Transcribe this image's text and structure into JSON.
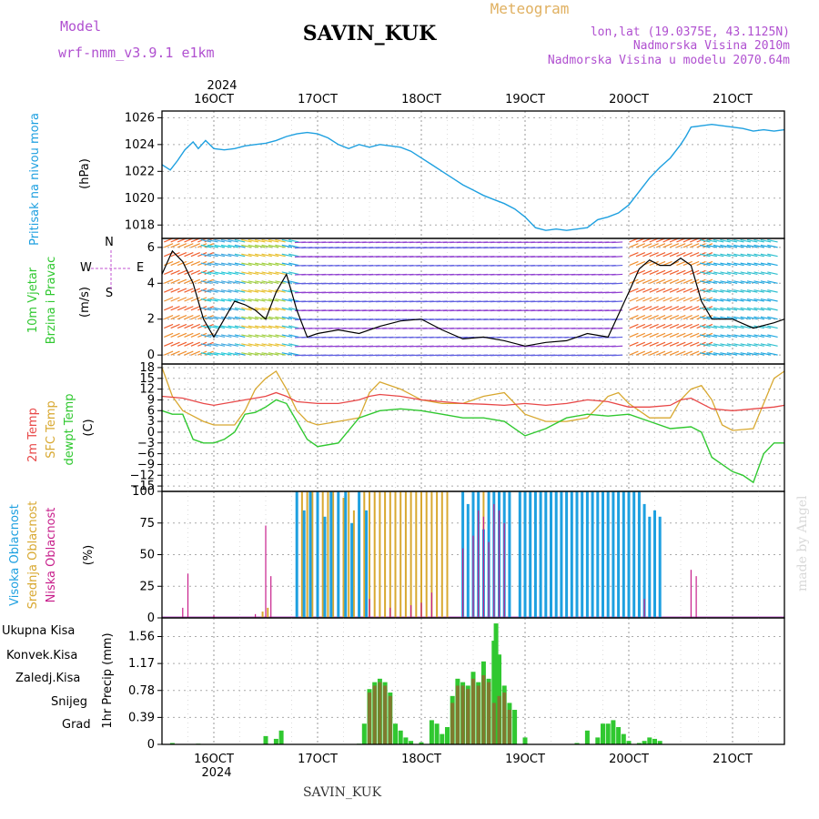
{
  "header": {
    "model_label": "Model",
    "model_name": "wrf-nmm_v3.9.1 e1km",
    "station": "SAVIN_KUK",
    "product": "Meteogram",
    "coords": "lon,lat (19.0375E, 43.1125N)",
    "elevation": "Nadmorska Visina 2010m",
    "model_elevation": "Nadmorska Visina u modelu 2070.64m",
    "footer_station": "SAVIN_KUK",
    "watermark": "made by Angel",
    "year": "2024",
    "day_labels": [
      "16OCT",
      "17OCT",
      "18OCT",
      "19OCT",
      "20OCT",
      "21OCT"
    ]
  },
  "colors": {
    "pressure": "#1ea0e0",
    "t2m": "#e84848",
    "sfc": "#d8a830",
    "dewpt": "#30c830",
    "high_cloud": "#1ea0e0",
    "mid_cloud": "#d8a830",
    "low_cloud": "#c8208c",
    "total_precip": "#30c830",
    "conv_precip": "#e84848",
    "grid_precip": "#d87830",
    "snow": "#5050e0",
    "graupel": "#30c8c8",
    "wind_label": "#30c830",
    "wind_units": "#c050d0"
  },
  "chart_data": [
    {
      "type": "line",
      "panel": "pressure",
      "ylabel_name": "Pritisak na nivou mora",
      "ylabel_unit": "(hPa)",
      "ylim": [
        1017,
        1026.5
      ],
      "yticks": [
        1018,
        1020,
        1022,
        1024,
        1026
      ],
      "xlim_days": [
        15.5,
        21.5
      ],
      "series": [
        {
          "x": [
            15.5,
            15.58,
            15.65,
            15.72,
            15.8,
            15.85,
            15.92,
            16.0,
            16.1,
            16.2,
            16.3,
            16.4,
            16.5,
            16.6,
            16.7,
            16.8,
            16.9,
            17.0,
            17.1,
            17.2,
            17.3,
            17.4,
            17.5,
            17.6,
            17.7,
            17.8,
            17.9,
            18.0,
            18.1,
            18.2,
            18.3,
            18.4,
            18.5,
            18.6,
            18.7,
            18.8,
            18.9,
            19.0,
            19.1,
            19.2,
            19.3,
            19.4,
            19.5,
            19.6,
            19.7,
            19.8,
            19.9,
            20.0,
            20.1,
            20.2,
            20.3,
            20.4,
            20.5,
            20.55,
            20.6,
            20.7,
            20.8,
            20.9,
            21.0,
            21.1,
            21.2,
            21.3,
            21.4,
            21.5
          ],
          "y": [
            1022.5,
            1022.1,
            1022.8,
            1023.6,
            1024.2,
            1023.7,
            1024.3,
            1023.7,
            1023.6,
            1023.7,
            1023.9,
            1024.0,
            1024.1,
            1024.3,
            1024.6,
            1024.8,
            1024.9,
            1024.8,
            1024.5,
            1024.0,
            1023.7,
            1024.0,
            1023.8,
            1024.0,
            1023.9,
            1023.8,
            1023.5,
            1023.0,
            1022.5,
            1022.0,
            1021.5,
            1021.0,
            1020.6,
            1020.2,
            1019.9,
            1019.6,
            1019.2,
            1018.6,
            1017.8,
            1017.6,
            1017.7,
            1017.6,
            1017.7,
            1017.8,
            1018.4,
            1018.6,
            1018.9,
            1019.5,
            1020.5,
            1021.5,
            1022.3,
            1023.0,
            1024.0,
            1024.6,
            1025.3,
            1025.4,
            1025.5,
            1025.4,
            1025.3,
            1025.2,
            1025.0,
            1025.1,
            1025.0,
            1025.1
          ]
        }
      ]
    },
    {
      "type": "barbs",
      "panel": "wind",
      "ylabel_name": "10m Vjetar",
      "ylabel_name2": "Brzina i Pravac",
      "ylabel_unit": "(m/s)",
      "compass_n": "N",
      "compass_s": "S",
      "compass_e": "E",
      "compass_w": "W",
      "ylim": [
        -0.5,
        6.5
      ],
      "yticks": [
        0,
        2,
        4,
        6
      ],
      "series": [
        {
          "name": "speed",
          "x": [
            15.5,
            15.6,
            15.7,
            15.8,
            15.9,
            16.0,
            16.1,
            16.2,
            16.3,
            16.4,
            16.5,
            16.6,
            16.7,
            16.8,
            16.9,
            17.0,
            17.2,
            17.4,
            17.6,
            17.8,
            18.0,
            18.2,
            18.4,
            18.6,
            18.8,
            19.0,
            19.2,
            19.4,
            19.6,
            19.8,
            20.0,
            20.1,
            20.2,
            20.3,
            20.4,
            20.5,
            20.6,
            20.7,
            20.8,
            21.0,
            21.2,
            21.4,
            21.5
          ],
          "y": [
            4.5,
            5.8,
            5.2,
            4.0,
            2.0,
            1.0,
            2.0,
            3.0,
            2.8,
            2.5,
            2.0,
            3.5,
            4.5,
            2.5,
            1.0,
            1.2,
            1.4,
            1.2,
            1.6,
            1.9,
            2.0,
            1.4,
            0.9,
            1.0,
            0.8,
            0.5,
            0.7,
            0.8,
            1.2,
            1.0,
            3.5,
            4.8,
            5.3,
            5.0,
            5.0,
            5.4,
            5.0,
            3.0,
            2.0,
            2.0,
            1.5,
            1.8,
            2.0
          ]
        }
      ]
    },
    {
      "type": "line",
      "panel": "temperature",
      "ylabel_name": "2m Temp",
      "ylabel_name2": "SFC Temp",
      "ylabel_name3": "dewpt Temp",
      "ylabel_unit": "(C)",
      "ylim": [
        -16.5,
        19
      ],
      "yticks": [
        -15,
        -12,
        -9,
        -6,
        -3,
        0,
        3,
        6,
        9,
        12,
        15,
        18
      ],
      "series": [
        {
          "name": "2m Temp",
          "x": [
            15.5,
            15.7,
            15.9,
            16.0,
            16.2,
            16.4,
            16.5,
            16.6,
            16.7,
            16.8,
            17.0,
            17.2,
            17.4,
            17.5,
            17.6,
            17.8,
            18.0,
            18.2,
            18.4,
            18.6,
            18.8,
            19.0,
            19.2,
            19.4,
            19.6,
            19.8,
            20.0,
            20.2,
            20.4,
            20.5,
            20.6,
            20.7,
            20.8,
            21.0,
            21.2,
            21.4,
            21.5
          ],
          "y": [
            10,
            9.5,
            8,
            7.5,
            8.5,
            9.5,
            10,
            11,
            10,
            8.5,
            8,
            8,
            9,
            10,
            10.5,
            10,
            9,
            8.5,
            8,
            7.8,
            7.5,
            8,
            7.5,
            8,
            9,
            8.5,
            7,
            7,
            7.5,
            9,
            9.5,
            8,
            6.5,
            6,
            6.5,
            7,
            7.5
          ]
        },
        {
          "name": "SFC Temp",
          "x": [
            15.5,
            15.6,
            15.7,
            15.9,
            16.0,
            16.2,
            16.3,
            16.4,
            16.5,
            16.6,
            16.7,
            16.8,
            16.9,
            17.0,
            17.2,
            17.4,
            17.5,
            17.6,
            17.8,
            18.0,
            18.2,
            18.4,
            18.6,
            18.8,
            19.0,
            19.2,
            19.4,
            19.6,
            19.8,
            19.9,
            20.0,
            20.2,
            20.4,
            20.5,
            20.6,
            20.7,
            20.8,
            20.9,
            21.0,
            21.2,
            21.4,
            21.5
          ],
          "y": [
            18,
            10,
            6,
            3,
            2,
            2,
            6,
            12,
            15,
            17,
            12,
            6,
            3,
            2,
            3,
            4,
            11,
            14,
            12,
            9,
            8,
            8,
            10,
            11,
            5,
            3,
            3,
            4,
            10,
            11,
            8,
            4,
            4,
            9,
            12,
            13,
            9,
            2,
            0.5,
            1,
            15,
            17
          ]
        },
        {
          "name": "dewpt Temp",
          "x": [
            15.5,
            15.6,
            15.7,
            15.8,
            15.9,
            16.0,
            16.1,
            16.2,
            16.3,
            16.4,
            16.5,
            16.6,
            16.7,
            16.8,
            16.9,
            17.0,
            17.2,
            17.4,
            17.6,
            17.8,
            18.0,
            18.2,
            18.4,
            18.6,
            18.8,
            19.0,
            19.2,
            19.4,
            19.6,
            19.8,
            20.0,
            20.2,
            20.4,
            20.6,
            20.7,
            20.8,
            21.0,
            21.1,
            21.2,
            21.3,
            21.4,
            21.5
          ],
          "y": [
            6,
            5,
            5,
            -2,
            -3,
            -3,
            -2,
            0,
            5,
            5.5,
            7,
            9,
            8,
            3,
            -2,
            -4,
            -3,
            4,
            6,
            6.5,
            6,
            5,
            4,
            4,
            3,
            -1,
            1,
            4,
            5,
            4.5,
            5,
            3,
            1,
            1.5,
            0,
            -7,
            -11,
            -12,
            -14,
            -6,
            -3,
            -3
          ]
        }
      ]
    },
    {
      "type": "bar",
      "panel": "clouds",
      "ylabel_name": "Visoka Oblacnost",
      "ylabel_name2": "Srednja Oblacnost",
      "ylabel_name3": "Niska Oblacnost",
      "ylabel_unit": "(%)",
      "ylim": [
        0,
        100
      ],
      "yticks": [
        0,
        25,
        50,
        75,
        100
      ],
      "series": [
        {
          "name": "Srednja Oblacnost",
          "x": [
            16.47,
            16.52,
            16.8,
            16.85,
            16.9,
            16.95,
            17.0,
            17.05,
            17.1,
            17.15,
            17.2,
            17.25,
            17.3,
            17.35,
            17.4,
            17.45,
            17.5,
            17.55,
            17.6,
            17.65,
            17.7,
            17.75,
            17.8,
            17.85,
            17.9,
            17.95,
            18.0,
            18.05,
            18.1,
            18.15,
            18.2,
            18.25,
            18.5,
            18.55,
            18.6,
            18.65,
            18.7,
            18.75,
            18.8,
            18.85,
            19.0,
            19.1,
            19.2,
            19.3,
            19.4,
            19.5,
            19.6,
            19.7,
            19.8,
            19.9,
            20.0,
            20.1
          ],
          "y": [
            5,
            8,
            100,
            100,
            100,
            100,
            100,
            100,
            100,
            100,
            100,
            95,
            100,
            85,
            100,
            100,
            100,
            100,
            100,
            100,
            100,
            100,
            100,
            100,
            100,
            100,
            100,
            100,
            100,
            100,
            100,
            100,
            85,
            100,
            100,
            100,
            85,
            100,
            80,
            60,
            55,
            75,
            100,
            85,
            100,
            100,
            100,
            100,
            100,
            100,
            100,
            100
          ]
        },
        {
          "name": "Visoka Oblacnost",
          "x": [
            16.8,
            16.87,
            16.93,
            17.0,
            17.07,
            17.13,
            17.2,
            17.27,
            17.33,
            17.4,
            17.47,
            18.4,
            18.45,
            18.5,
            18.55,
            18.6,
            18.65,
            18.7,
            18.75,
            18.8,
            18.85,
            18.95,
            19.0,
            19.05,
            19.1,
            19.15,
            19.2,
            19.25,
            19.3,
            19.35,
            19.4,
            19.45,
            19.5,
            19.55,
            19.6,
            19.65,
            19.7,
            19.75,
            19.8,
            19.85,
            19.9,
            19.95,
            20.0,
            20.05,
            20.1,
            20.15,
            20.2,
            20.25,
            20.3
          ],
          "y": [
            100,
            85,
            100,
            100,
            80,
            100,
            100,
            100,
            75,
            100,
            85,
            100,
            90,
            100,
            100,
            70,
            100,
            100,
            100,
            100,
            100,
            100,
            100,
            100,
            100,
            100,
            100,
            100,
            100,
            100,
            100,
            100,
            100,
            100,
            100,
            100,
            100,
            100,
            100,
            100,
            100,
            100,
            100,
            100,
            100,
            90,
            80,
            85,
            80
          ]
        },
        {
          "name": "Niska Oblacnost",
          "x": [
            15.7,
            15.75,
            16.0,
            16.4,
            16.5,
            16.55,
            17.5,
            17.7,
            17.9,
            18.0,
            18.1,
            18.4,
            18.5,
            18.55,
            18.6,
            18.65,
            18.7,
            18.75,
            18.8,
            20.15,
            20.6,
            20.65
          ],
          "y": [
            8,
            35,
            2,
            3,
            73,
            33,
            15,
            8,
            10,
            12,
            20,
            55,
            65,
            85,
            80,
            60,
            90,
            85,
            75,
            15,
            38,
            33
          ]
        }
      ]
    },
    {
      "type": "bar",
      "panel": "precipitation",
      "ylabel_name": "1hr Precip (mm)",
      "legend": [
        "Ukupna Kisa",
        "Konvek.Kisa",
        "Zaledj.Kisa",
        "Snijeg",
        "Grad"
      ],
      "ylim": [
        0,
        1.83
      ],
      "yticks": [
        0,
        0.39,
        0.78,
        1.17,
        1.56
      ],
      "ytick_labels": [
        "0",
        "0.39",
        "0.78",
        "1.17",
        "1.56"
      ],
      "series": [
        {
          "name": "Ukupna Kisa",
          "x": [
            15.6,
            15.85,
            16.5,
            16.6,
            16.65,
            17.4,
            17.45,
            17.5,
            17.55,
            17.6,
            17.65,
            17.7,
            17.75,
            17.8,
            17.85,
            17.9,
            18.0,
            18.1,
            18.15,
            18.2,
            18.25,
            18.3,
            18.35,
            18.4,
            18.45,
            18.5,
            18.55,
            18.6,
            18.65,
            18.7,
            18.72,
            18.75,
            18.8,
            18.85,
            18.9,
            19.0,
            19.5,
            19.6,
            19.7,
            19.75,
            19.8,
            19.85,
            19.9,
            19.95,
            20.0,
            20.1,
            20.15,
            20.2,
            20.25,
            20.3
          ],
          "y": [
            0.02,
            0.01,
            0.12,
            0.08,
            0.2,
            0.01,
            0.3,
            0.8,
            0.9,
            0.95,
            0.9,
            0.75,
            0.3,
            0.2,
            0.1,
            0.05,
            0.03,
            0.35,
            0.3,
            0.15,
            0.25,
            0.7,
            0.95,
            0.9,
            0.85,
            1.05,
            0.9,
            1.2,
            0.95,
            1.5,
            1.75,
            1.3,
            0.85,
            0.6,
            0.5,
            0.1,
            0.02,
            0.2,
            0.1,
            0.3,
            0.3,
            0.35,
            0.25,
            0.15,
            0.05,
            0.02,
            0.05,
            0.1,
            0.08,
            0.05
          ]
        },
        {
          "name": "Konvek.Kisa",
          "x": [
            17.5,
            17.55,
            17.6,
            17.65,
            17.7,
            18.3,
            18.35,
            18.4,
            18.45,
            18.5,
            18.55,
            18.6,
            18.65,
            18.7,
            18.75,
            18.8,
            18.85
          ],
          "y": [
            0.75,
            0.85,
            0.9,
            0.85,
            0.7,
            0.6,
            0.85,
            0.85,
            0.8,
            0.95,
            0.85,
            1.0,
            0.9,
            0.6,
            0.7,
            0.75,
            0.5
          ]
        }
      ]
    }
  ]
}
